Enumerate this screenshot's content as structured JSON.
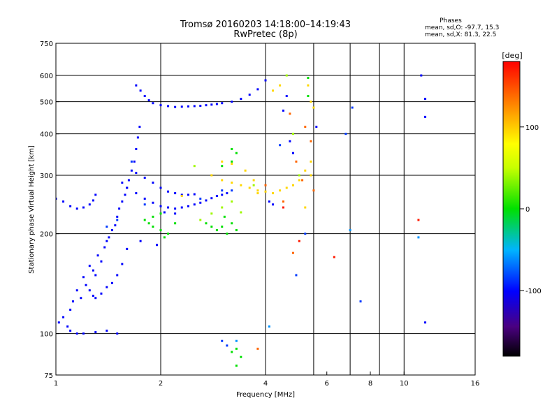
{
  "chart_data": {
    "type": "scatter",
    "title": "Tromsø 20160203 14:18:00–14:19:43",
    "subtitle": "RwPretec (8p)",
    "info": {
      "heading": "Phases",
      "line1": "mean, sd,O: -97.7, 15.3",
      "line2": "mean, sd,X: 81.3, 22.5"
    },
    "xlabel": "Frequency [MHz]",
    "ylabel": "Stationary phase Virtual Height [km]",
    "xscale": "log",
    "yscale": "log",
    "xlim": [
      1,
      16
    ],
    "ylim": [
      75,
      750
    ],
    "xticks": [
      1,
      2,
      4,
      6,
      8,
      10,
      16
    ],
    "xtick_labels": [
      "1",
      "2",
      "4",
      "6",
      "8",
      "10",
      "16"
    ],
    "yticks": [
      75,
      100,
      200,
      300,
      400,
      500,
      600,
      750
    ],
    "ytick_labels": [
      "75",
      "100",
      "200",
      "300",
      "400",
      "500",
      "600",
      "750"
    ],
    "grid_x": [
      2,
      4,
      5.5,
      7,
      8.5,
      10
    ],
    "grid_y": [
      100,
      200,
      300,
      400,
      500,
      600
    ],
    "colorbar": {
      "label": "[deg]",
      "range": [
        -180,
        180
      ],
      "ticks": [
        -100,
        0,
        100
      ],
      "tick_labels": [
        "-100",
        "0",
        "100"
      ]
    },
    "series": [
      {
        "phase": -100,
        "points": [
          [
            1.0,
            255
          ],
          [
            1.05,
            250
          ],
          [
            1.1,
            242
          ],
          [
            1.15,
            238
          ],
          [
            1.2,
            240
          ],
          [
            1.25,
            245
          ],
          [
            1.28,
            252
          ],
          [
            1.3,
            262
          ],
          [
            1.02,
            108
          ],
          [
            1.05,
            112
          ],
          [
            1.08,
            105
          ],
          [
            1.1,
            118
          ],
          [
            1.12,
            125
          ],
          [
            1.15,
            135
          ],
          [
            1.18,
            128
          ],
          [
            1.2,
            148
          ],
          [
            1.22,
            140
          ],
          [
            1.25,
            160
          ],
          [
            1.28,
            155
          ],
          [
            1.3,
            150
          ],
          [
            1.32,
            172
          ],
          [
            1.35,
            165
          ],
          [
            1.38,
            182
          ],
          [
            1.4,
            190
          ],
          [
            1.42,
            195
          ],
          [
            1.45,
            205
          ],
          [
            1.48,
            212
          ],
          [
            1.5,
            225
          ],
          [
            1.52,
            238
          ],
          [
            1.55,
            250
          ],
          [
            1.58,
            262
          ],
          [
            1.6,
            275
          ],
          [
            1.62,
            290
          ],
          [
            1.65,
            310
          ],
          [
            1.68,
            330
          ],
          [
            1.7,
            360
          ],
          [
            1.72,
            390
          ],
          [
            1.74,
            420
          ],
          [
            1.25,
            135
          ],
          [
            1.28,
            130
          ],
          [
            1.3,
            128
          ],
          [
            1.35,
            132
          ],
          [
            1.4,
            138
          ],
          [
            1.45,
            142
          ],
          [
            1.5,
            150
          ],
          [
            1.55,
            162
          ],
          [
            1.6,
            180
          ],
          [
            1.1,
            102
          ],
          [
            1.15,
            100
          ],
          [
            1.2,
            100
          ],
          [
            1.3,
            101
          ],
          [
            1.4,
            102
          ],
          [
            1.5,
            100
          ],
          [
            1.55,
            285
          ],
          [
            1.6,
            275
          ],
          [
            1.7,
            265
          ],
          [
            1.8,
            255
          ],
          [
            1.9,
            248
          ],
          [
            2.0,
            242
          ],
          [
            2.1,
            240
          ],
          [
            2.2,
            238
          ],
          [
            2.3,
            240
          ],
          [
            2.4,
            242
          ],
          [
            2.5,
            245
          ],
          [
            2.6,
            248
          ],
          [
            2.7,
            252
          ],
          [
            2.8,
            256
          ],
          [
            2.9,
            260
          ],
          [
            3.0,
            262
          ],
          [
            3.1,
            265
          ],
          [
            1.7,
            305
          ],
          [
            1.8,
            295
          ],
          [
            1.9,
            285
          ],
          [
            2.0,
            275
          ],
          [
            2.1,
            268
          ],
          [
            2.2,
            265
          ],
          [
            2.3,
            262
          ],
          [
            2.4,
            262
          ],
          [
            2.5,
            263
          ],
          [
            1.7,
            560
          ],
          [
            1.75,
            540
          ],
          [
            1.8,
            520
          ],
          [
            1.85,
            505
          ],
          [
            1.9,
            495
          ],
          [
            2.0,
            488
          ],
          [
            2.1,
            485
          ],
          [
            2.2,
            482
          ],
          [
            2.3,
            483
          ],
          [
            2.4,
            484
          ],
          [
            2.5,
            485
          ],
          [
            2.6,
            486
          ],
          [
            2.7,
            488
          ],
          [
            2.8,
            490
          ],
          [
            2.9,
            492
          ],
          [
            3.0,
            495
          ],
          [
            3.2,
            500
          ],
          [
            3.4,
            510
          ],
          [
            3.6,
            525
          ],
          [
            3.8,
            545
          ],
          [
            4.0,
            580
          ],
          [
            4.1,
            250
          ],
          [
            4.2,
            245
          ],
          [
            4.5,
            470
          ],
          [
            4.6,
            520
          ],
          [
            4.7,
            380
          ],
          [
            4.8,
            350
          ],
          [
            1.95,
            185
          ],
          [
            1.75,
            190
          ],
          [
            5.6,
            420
          ],
          [
            11.2,
            600
          ],
          [
            11.5,
            510
          ],
          [
            11.5,
            450
          ],
          [
            11.5,
            108
          ],
          [
            2.05,
            232
          ],
          [
            2.2,
            230
          ]
        ]
      },
      {
        "phase": -85,
        "points": [
          [
            1.4,
            210
          ],
          [
            1.5,
            220
          ],
          [
            1.65,
            330
          ],
          [
            1.8,
            245
          ],
          [
            2.6,
            255
          ],
          [
            3.0,
            270
          ],
          [
            3.2,
            270
          ],
          [
            4.4,
            370
          ],
          [
            4.9,
            150
          ],
          [
            5.2,
            200
          ],
          [
            6.8,
            400
          ],
          [
            7.1,
            480
          ],
          [
            7.5,
            125
          ],
          [
            3.0,
            95
          ],
          [
            3.1,
            92
          ]
        ]
      },
      {
        "phase": -60,
        "points": [
          [
            3.3,
            95
          ],
          [
            4.1,
            105
          ],
          [
            7.0,
            205
          ],
          [
            11.0,
            195
          ]
        ]
      },
      {
        "phase": 0,
        "points": [
          [
            1.8,
            220
          ],
          [
            1.9,
            210
          ],
          [
            2.0,
            205
          ],
          [
            2.1,
            200
          ],
          [
            2.2,
            215
          ],
          [
            2.0,
            230
          ],
          [
            1.9,
            225
          ],
          [
            1.85,
            215
          ],
          [
            2.05,
            195
          ],
          [
            2.7,
            215
          ],
          [
            2.8,
            210
          ],
          [
            2.9,
            205
          ],
          [
            3.0,
            210
          ],
          [
            3.1,
            200
          ],
          [
            3.2,
            215
          ],
          [
            3.3,
            205
          ],
          [
            3.05,
            225
          ],
          [
            3.2,
            360
          ],
          [
            3.3,
            350
          ],
          [
            3.2,
            330
          ],
          [
            3.0,
            320
          ],
          [
            5.3,
            590
          ],
          [
            5.3,
            520
          ],
          [
            3.3,
            90
          ],
          [
            3.4,
            85
          ],
          [
            3.3,
            80
          ],
          [
            3.2,
            88
          ]
        ]
      },
      {
        "phase": 40,
        "points": [
          [
            2.6,
            220
          ],
          [
            2.8,
            230
          ],
          [
            3.0,
            240
          ],
          [
            3.2,
            250
          ],
          [
            3.4,
            232
          ],
          [
            3.7,
            280
          ],
          [
            4.8,
            400
          ],
          [
            5.0,
            300
          ],
          [
            4.6,
            600
          ],
          [
            2.5,
            320
          ]
        ]
      },
      {
        "phase": 95,
        "points": [
          [
            2.8,
            300
          ],
          [
            3.0,
            290
          ],
          [
            3.2,
            285
          ],
          [
            3.4,
            280
          ],
          [
            3.6,
            275
          ],
          [
            3.8,
            270
          ],
          [
            4.0,
            268
          ],
          [
            4.2,
            265
          ],
          [
            4.4,
            270
          ],
          [
            4.6,
            275
          ],
          [
            4.8,
            280
          ],
          [
            5.0,
            290
          ],
          [
            5.2,
            310
          ],
          [
            5.4,
            330
          ],
          [
            3.0,
            330
          ],
          [
            3.2,
            325
          ],
          [
            3.5,
            310
          ],
          [
            3.7,
            290
          ],
          [
            5.2,
            240
          ],
          [
            5.4,
            300
          ],
          [
            5.5,
            480
          ],
          [
            5.4,
            500
          ],
          [
            5.3,
            560
          ],
          [
            4.2,
            540
          ],
          [
            2.3,
            260
          ],
          [
            3.8,
            265
          ],
          [
            4.4,
            560
          ]
        ]
      },
      {
        "phase": 140,
        "points": [
          [
            4.9,
            330
          ],
          [
            5.1,
            290
          ],
          [
            5.4,
            380
          ],
          [
            5.2,
            420
          ],
          [
            4.7,
            460
          ],
          [
            5.5,
            270
          ],
          [
            4.0,
            280
          ],
          [
            4.5,
            250
          ],
          [
            3.8,
            90
          ],
          [
            4.8,
            175
          ]
        ]
      },
      {
        "phase": 170,
        "points": [
          [
            5.0,
            190
          ],
          [
            6.3,
            170
          ],
          [
            4.5,
            240
          ],
          [
            11.0,
            220
          ]
        ]
      }
    ]
  }
}
